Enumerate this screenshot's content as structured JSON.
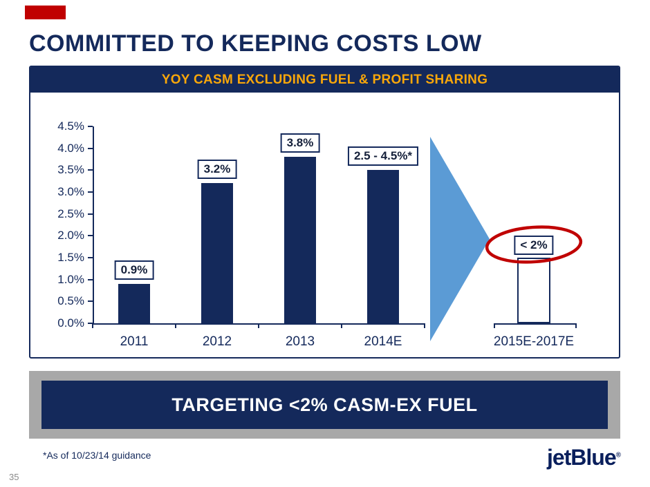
{
  "slide": {
    "title": "COMMITTED TO KEEPING COSTS LOW",
    "banner_text": "TARGETING <2% CASM-EX FUEL",
    "footnote": "*As of 10/23/14 guidance",
    "logo_text": "jetBlue",
    "logo_reg_mark": "®",
    "page_number": "35"
  },
  "chart_data": {
    "type": "bar",
    "title": "YOY CASM EXCLUDING FUEL & PROFIT SHARING",
    "categories": [
      "2011",
      "2012",
      "2013",
      "2014E",
      "2015E-2017E"
    ],
    "series": [
      {
        "name": "YoY CASM excluding fuel & profit sharing",
        "values": [
          0.9,
          3.2,
          3.8,
          3.5,
          1.5
        ]
      }
    ],
    "bar_labels": [
      "0.9%",
      "3.2%",
      "3.8%",
      "2.5 - 4.5%*",
      "< 2%"
    ],
    "bar_styles": [
      "solid",
      "solid",
      "solid",
      "solid",
      "outline"
    ],
    "ylim": [
      0,
      4.5
    ],
    "ytick_labels": [
      "0.0%",
      "0.5%",
      "1.0%",
      "1.5%",
      "2.0%",
      "2.5%",
      "3.0%",
      "3.5%",
      "4.0%",
      "4.5%"
    ],
    "grid": false,
    "legend": "none",
    "notes": "2014E bar drawn at ~3.5% with guidance label 2.5 - 4.5%*; 2015E-2017E drawn as hollow outline bar at ~1.5% with circled target label < 2%",
    "annotations": [
      {
        "type": "arrow-right",
        "between": [
          "2014E",
          "2015E-2017E"
        ]
      },
      {
        "type": "red-ellipse",
        "around": "< 2%"
      }
    ]
  },
  "colors": {
    "navy": "#14295b",
    "orange": "#f9a70a",
    "red": "#c00000",
    "blue": "#5b9bd5",
    "gray": "#a8a8a8"
  }
}
